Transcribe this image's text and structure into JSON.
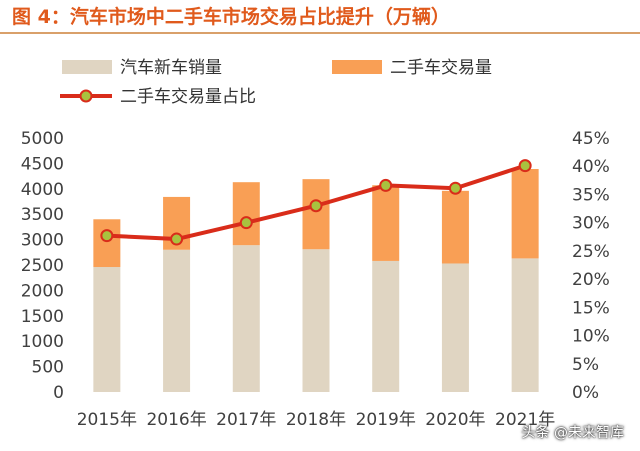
{
  "title": "图 4：汽车市场中二手车市场交易占比提升（万辆）",
  "watermark": "头条 @未来智库",
  "colors": {
    "new_car": "#e0d5c2",
    "used_car": "#f99f55",
    "ratio_line": "#d92c1a",
    "ratio_marker_fill": "#a9c23f",
    "title": "#e05a1c"
  },
  "chart_data": {
    "type": "bar",
    "stacked": true,
    "categories": [
      "2015年",
      "2016年",
      "2017年",
      "2018年",
      "2019年",
      "2020年",
      "2021年"
    ],
    "series": [
      {
        "name": "汽车新车销量",
        "type": "bar",
        "axis": "left",
        "values": [
          2460,
          2800,
          2890,
          2810,
          2580,
          2530,
          2630
        ]
      },
      {
        "name": "二手车交易量",
        "type": "bar",
        "axis": "left",
        "values": [
          940,
          1040,
          1240,
          1380,
          1490,
          1430,
          1760
        ]
      },
      {
        "name": "二手车交易量占比",
        "type": "line",
        "axis": "right",
        "values": [
          0.277,
          0.271,
          0.3,
          0.33,
          0.366,
          0.361,
          0.401
        ]
      }
    ],
    "y_left": {
      "min": 0,
      "max": 5000,
      "step": 500
    },
    "y_right": {
      "min": 0,
      "max": 0.45,
      "step": 0.05,
      "format": "percent"
    },
    "legend_position": "top",
    "grid": false
  }
}
